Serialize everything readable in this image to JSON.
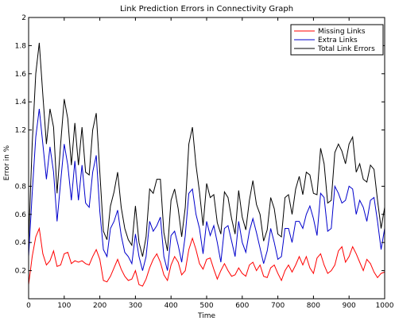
{
  "chart_data": {
    "type": "line",
    "title": "Link Prediction Errors in Connectivity Graph",
    "xlabel": "Time",
    "ylabel": "Error in %",
    "xlim": [
      0,
      1000
    ],
    "ylim": [
      0,
      2
    ],
    "grid": false,
    "legend_position": "top-right",
    "x_ticks": [
      0,
      100,
      200,
      300,
      400,
      500,
      600,
      700,
      800,
      900,
      1000
    ],
    "y_ticks": [
      0.2,
      0.4,
      0.6,
      0.8,
      1.2,
      1.4,
      1.6,
      1.8,
      2
    ],
    "x_tick_labels": [
      "0",
      "100",
      "200",
      "300",
      "400",
      "500",
      "600",
      "700",
      "800",
      "900",
      "1000"
    ],
    "y_tick_labels": [
      "0.2",
      "0.4",
      "0.6",
      "0.8",
      "1.2",
      "1.4",
      "1.6",
      "1.8",
      "2"
    ],
    "series": [
      {
        "name": "Missing Links",
        "color": "#ff0000",
        "x": [
          0,
          10,
          20,
          30,
          40,
          50,
          60,
          70,
          80,
          90,
          100,
          110,
          120,
          130,
          140,
          150,
          160,
          170,
          180,
          190,
          200,
          210,
          220,
          230,
          240,
          250,
          260,
          270,
          280,
          290,
          300,
          310,
          320,
          330,
          340,
          350,
          360,
          370,
          380,
          390,
          400,
          410,
          420,
          430,
          440,
          450,
          460,
          470,
          480,
          490,
          500,
          510,
          520,
          530,
          540,
          550,
          560,
          570,
          580,
          590,
          600,
          610,
          620,
          630,
          640,
          650,
          660,
          670,
          680,
          690,
          700,
          710,
          720,
          730,
          740,
          750,
          760,
          770,
          780,
          790,
          800,
          810,
          820,
          830,
          840,
          850,
          860,
          870,
          880,
          890,
          900,
          910,
          920,
          930,
          940,
          950,
          960,
          970,
          980,
          990,
          1000
        ],
        "values": [
          0.1,
          0.3,
          0.44,
          0.5,
          0.32,
          0.24,
          0.27,
          0.34,
          0.23,
          0.24,
          0.32,
          0.33,
          0.25,
          0.27,
          0.26,
          0.27,
          0.25,
          0.24,
          0.3,
          0.35,
          0.28,
          0.13,
          0.12,
          0.16,
          0.22,
          0.28,
          0.21,
          0.16,
          0.13,
          0.14,
          0.2,
          0.1,
          0.09,
          0.14,
          0.22,
          0.28,
          0.32,
          0.26,
          0.17,
          0.13,
          0.24,
          0.3,
          0.26,
          0.17,
          0.2,
          0.35,
          0.43,
          0.35,
          0.25,
          0.21,
          0.28,
          0.29,
          0.21,
          0.14,
          0.2,
          0.25,
          0.2,
          0.16,
          0.17,
          0.22,
          0.18,
          0.16,
          0.24,
          0.26,
          0.2,
          0.24,
          0.16,
          0.15,
          0.22,
          0.24,
          0.18,
          0.13,
          0.2,
          0.24,
          0.19,
          0.24,
          0.3,
          0.24,
          0.3,
          0.22,
          0.18,
          0.29,
          0.32,
          0.24,
          0.18,
          0.2,
          0.24,
          0.34,
          0.37,
          0.26,
          0.3,
          0.37,
          0.32,
          0.26,
          0.2,
          0.28,
          0.25,
          0.19,
          0.15,
          0.18,
          0.19
        ]
      },
      {
        "name": "Extra Links",
        "color": "#0000cc",
        "x": [
          0,
          10,
          20,
          30,
          40,
          50,
          60,
          70,
          80,
          90,
          100,
          110,
          120,
          130,
          140,
          150,
          160,
          170,
          180,
          190,
          200,
          210,
          220,
          230,
          240,
          250,
          260,
          270,
          280,
          290,
          300,
          310,
          320,
          330,
          340,
          350,
          360,
          370,
          380,
          390,
          400,
          410,
          420,
          430,
          440,
          450,
          460,
          470,
          480,
          490,
          500,
          510,
          520,
          530,
          540,
          550,
          560,
          570,
          580,
          590,
          600,
          610,
          620,
          630,
          640,
          650,
          660,
          670,
          680,
          690,
          700,
          710,
          720,
          730,
          740,
          750,
          760,
          770,
          780,
          790,
          800,
          810,
          820,
          830,
          840,
          850,
          860,
          870,
          880,
          890,
          900,
          910,
          920,
          930,
          940,
          950,
          960,
          970,
          980,
          990,
          1000
        ],
        "values": [
          0.3,
          0.75,
          1.15,
          1.35,
          1.1,
          0.85,
          1.08,
          0.9,
          0.55,
          0.83,
          1.1,
          0.95,
          0.7,
          0.98,
          0.7,
          0.95,
          0.68,
          0.65,
          0.9,
          1.02,
          0.62,
          0.35,
          0.3,
          0.5,
          0.55,
          0.63,
          0.45,
          0.33,
          0.3,
          0.25,
          0.46,
          0.3,
          0.2,
          0.3,
          0.55,
          0.48,
          0.52,
          0.58,
          0.3,
          0.2,
          0.45,
          0.48,
          0.38,
          0.26,
          0.45,
          0.75,
          0.78,
          0.6,
          0.5,
          0.32,
          0.55,
          0.45,
          0.52,
          0.4,
          0.26,
          0.5,
          0.52,
          0.41,
          0.3,
          0.55,
          0.4,
          0.33,
          0.48,
          0.57,
          0.47,
          0.36,
          0.25,
          0.34,
          0.5,
          0.4,
          0.28,
          0.3,
          0.5,
          0.5,
          0.4,
          0.55,
          0.55,
          0.5,
          0.6,
          0.66,
          0.57,
          0.45,
          0.75,
          0.72,
          0.48,
          0.5,
          0.8,
          0.75,
          0.68,
          0.7,
          0.8,
          0.78,
          0.6,
          0.7,
          0.65,
          0.55,
          0.7,
          0.72,
          0.55,
          0.35,
          0.5
        ]
      },
      {
        "name": "Total Link Errors",
        "color": "#000000",
        "x": [
          0,
          10,
          20,
          30,
          40,
          50,
          60,
          70,
          80,
          90,
          100,
          110,
          120,
          130,
          140,
          150,
          160,
          170,
          180,
          190,
          200,
          210,
          220,
          230,
          240,
          250,
          260,
          270,
          280,
          290,
          300,
          310,
          320,
          330,
          340,
          350,
          360,
          370,
          380,
          390,
          400,
          410,
          420,
          430,
          440,
          450,
          460,
          470,
          480,
          490,
          500,
          510,
          520,
          530,
          540,
          550,
          560,
          570,
          580,
          590,
          600,
          610,
          620,
          630,
          640,
          650,
          660,
          670,
          680,
          690,
          700,
          710,
          720,
          730,
          740,
          750,
          760,
          770,
          780,
          790,
          800,
          810,
          820,
          830,
          840,
          850,
          860,
          870,
          880,
          890,
          900,
          910,
          920,
          930,
          940,
          950,
          960,
          970,
          980,
          990,
          1000
        ],
        "values": [
          0.4,
          1.1,
          1.6,
          1.82,
          1.45,
          1.1,
          1.35,
          1.22,
          0.75,
          1.1,
          1.42,
          1.28,
          0.95,
          1.25,
          0.95,
          1.22,
          0.9,
          0.88,
          1.2,
          1.32,
          0.9,
          0.48,
          0.42,
          0.66,
          0.76,
          0.9,
          0.65,
          0.5,
          0.42,
          0.38,
          0.66,
          0.4,
          0.3,
          0.44,
          0.78,
          0.75,
          0.85,
          0.85,
          0.47,
          0.34,
          0.7,
          0.78,
          0.64,
          0.44,
          0.65,
          1.1,
          1.22,
          0.95,
          0.76,
          0.52,
          0.82,
          0.72,
          0.74,
          0.54,
          0.46,
          0.76,
          0.72,
          0.57,
          0.46,
          0.77,
          0.58,
          0.49,
          0.7,
          0.84,
          0.67,
          0.6,
          0.41,
          0.49,
          0.72,
          0.64,
          0.46,
          0.44,
          0.72,
          0.74,
          0.6,
          0.78,
          0.87,
          0.74,
          0.9,
          0.88,
          0.75,
          0.74,
          1.07,
          0.96,
          0.68,
          0.7,
          1.04,
          1.1,
          1.05,
          0.96,
          1.1,
          1.15,
          0.9,
          0.96,
          0.85,
          0.83,
          0.95,
          0.92,
          0.7,
          0.5,
          0.65
        ]
      }
    ]
  }
}
